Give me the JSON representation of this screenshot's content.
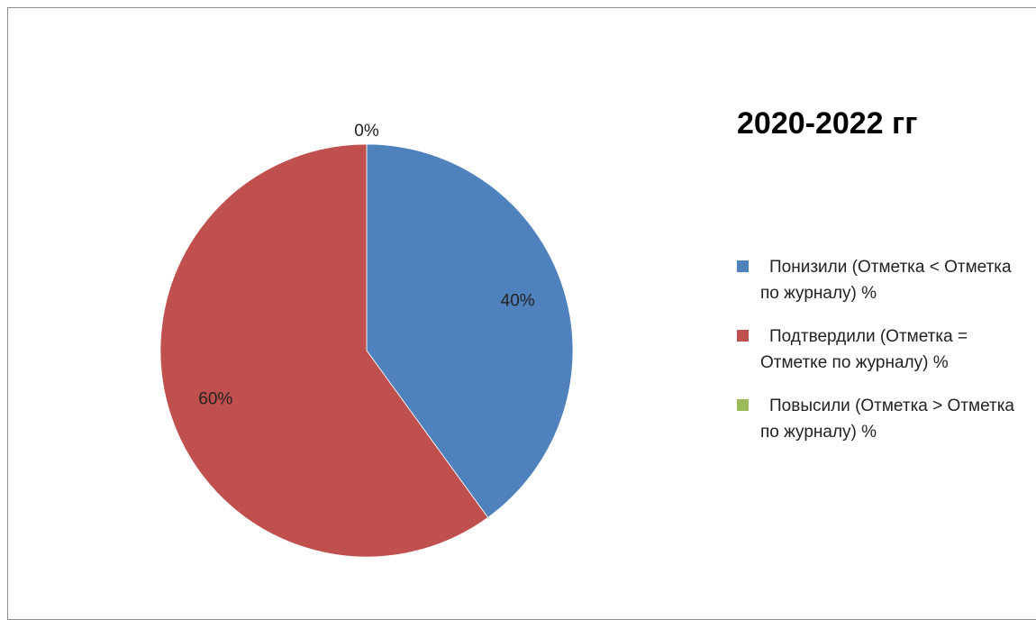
{
  "chart_data": {
    "type": "pie",
    "title": "2020-2022 гг",
    "categories": [
      "Понизили (Отметка < Отметка по журналу) %",
      "Подтвердили (Отметка = Отметке по журналу) %",
      "Повысили (Отметка > Отметка по журналу) %"
    ],
    "values": [
      40,
      60,
      0
    ],
    "data_labels": [
      "40%",
      "60%",
      "0%"
    ],
    "colors": [
      "#4F81BD",
      "#C0504D",
      "#9BBB59"
    ],
    "legend_position": "right"
  }
}
